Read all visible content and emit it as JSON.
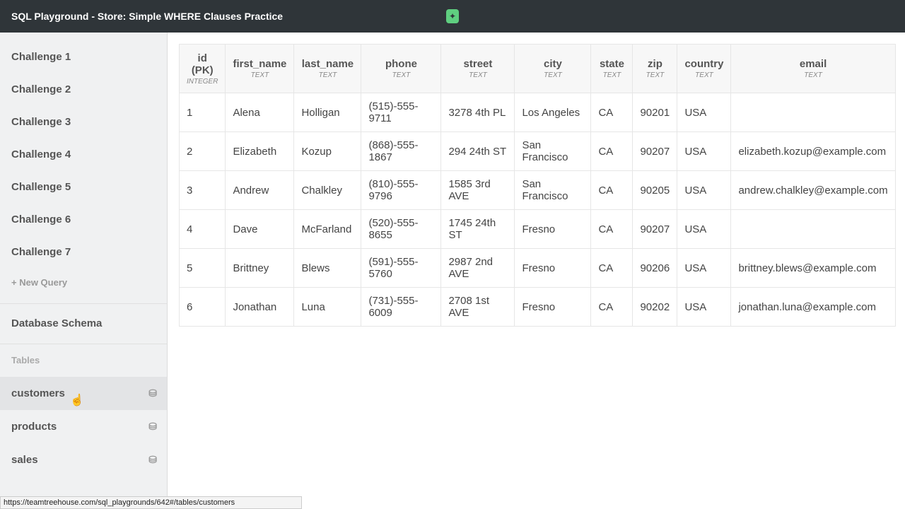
{
  "title": "SQL Playground - Store: Simple WHERE Clauses Practice",
  "sidebar": {
    "challenges": [
      "Challenge 1",
      "Challenge 2",
      "Challenge 3",
      "Challenge 4",
      "Challenge 5",
      "Challenge 6",
      "Challenge 7"
    ],
    "new_query": "+ New Query",
    "schema": "Database Schema",
    "tables_label": "Tables",
    "tables": [
      "customers",
      "products",
      "sales"
    ],
    "active_table": "customers"
  },
  "table": {
    "columns": [
      [
        "id (PK)",
        "INTEGER"
      ],
      [
        "first_name",
        "TEXT"
      ],
      [
        "last_name",
        "TEXT"
      ],
      [
        "phone",
        "TEXT"
      ],
      [
        "street",
        "TEXT"
      ],
      [
        "city",
        "TEXT"
      ],
      [
        "state",
        "TEXT"
      ],
      [
        "zip",
        "TEXT"
      ],
      [
        "country",
        "TEXT"
      ],
      [
        "email",
        "TEXT"
      ]
    ],
    "rows": [
      [
        "1",
        "Alena",
        "Holligan",
        "(515)-555-9711",
        "3278 4th PL",
        "Los Angeles",
        "CA",
        "90201",
        "USA",
        ""
      ],
      [
        "2",
        "Elizabeth",
        "Kozup",
        "(868)-555-1867",
        "294 24th ST",
        "San Francisco",
        "CA",
        "90207",
        "USA",
        "elizabeth.kozup@example.com"
      ],
      [
        "3",
        "Andrew",
        "Chalkley",
        "(810)-555-9796",
        "1585 3rd AVE",
        "San Francisco",
        "CA",
        "90205",
        "USA",
        "andrew.chalkley@example.com"
      ],
      [
        "4",
        "Dave",
        "McFarland",
        "(520)-555-8655",
        "1745 24th ST",
        "Fresno",
        "CA",
        "90207",
        "USA",
        ""
      ],
      [
        "5",
        "Brittney",
        "Blews",
        "(591)-555-5760",
        "2987 2nd AVE",
        "Fresno",
        "CA",
        "90206",
        "USA",
        "brittney.blews@example.com"
      ],
      [
        "6",
        "Jonathan",
        "Luna",
        "(731)-555-6009",
        "2708 1st AVE",
        "Fresno",
        "CA",
        "90202",
        "USA",
        "jonathan.luna@example.com"
      ]
    ]
  },
  "status_url": "https://teamtreehouse.com/sql_playgrounds/642#/tables/customers"
}
